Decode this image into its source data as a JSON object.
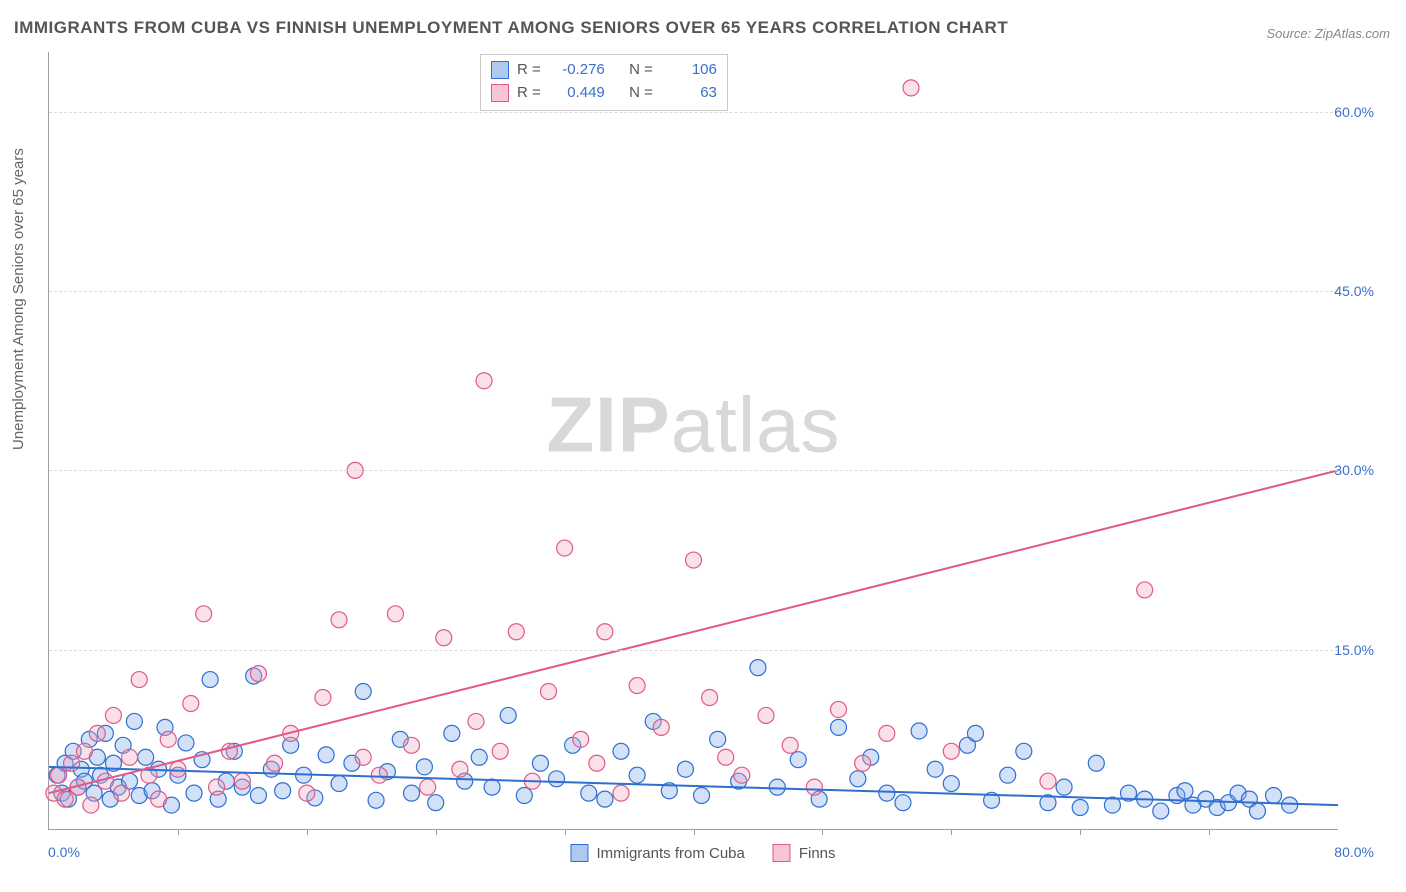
{
  "title": "IMMIGRANTS FROM CUBA VS FINNISH UNEMPLOYMENT AMONG SENIORS OVER 65 YEARS CORRELATION CHART",
  "source_prefix": "Source: ",
  "source_name": "ZipAtlas.com",
  "y_axis_label": "Unemployment Among Seniors over 65 years",
  "watermark_bold": "ZIP",
  "watermark_light": "atlas",
  "chart": {
    "type": "scatter",
    "xlim": [
      0,
      80
    ],
    "ylim": [
      0,
      65
    ],
    "x_origin_label": "0.0%",
    "x_max_label": "80.0%",
    "y_ticks": [
      15.0,
      30.0,
      45.0,
      60.0
    ],
    "y_tick_labels": [
      "15.0%",
      "30.0%",
      "45.0%",
      "60.0%"
    ],
    "x_minor_tick_step": 8,
    "background_color": "#ffffff",
    "grid_color": "#dcdcdc",
    "axis_color": "#9aa0a6",
    "tick_label_color": "#3b6fc9",
    "marker_radius": 8,
    "marker_fill_opacity": 0.35,
    "marker_stroke_width": 1.2,
    "trend_line_width": 2,
    "series": [
      {
        "id": "cuba",
        "label": "Immigrants from Cuba",
        "fill": "#7da9e8",
        "stroke": "#2f6fd0",
        "swatch_fill": "#aec8f0",
        "swatch_stroke": "#2f6fd0",
        "R": "-0.276",
        "N": "106",
        "trend": {
          "x1": 0,
          "y1": 5.2,
          "x2": 80,
          "y2": 2.0
        },
        "points": [
          [
            0.5,
            4.5
          ],
          [
            0.8,
            3.0
          ],
          [
            1.0,
            5.5
          ],
          [
            1.2,
            2.5
          ],
          [
            1.5,
            6.5
          ],
          [
            1.8,
            3.5
          ],
          [
            2.0,
            5.0
          ],
          [
            2.2,
            4.0
          ],
          [
            2.5,
            7.5
          ],
          [
            2.8,
            3.0
          ],
          [
            3.0,
            6.0
          ],
          [
            3.2,
            4.5
          ],
          [
            3.5,
            8.0
          ],
          [
            3.8,
            2.5
          ],
          [
            4.0,
            5.5
          ],
          [
            4.3,
            3.5
          ],
          [
            4.6,
            7.0
          ],
          [
            5.0,
            4.0
          ],
          [
            5.3,
            9.0
          ],
          [
            5.6,
            2.8
          ],
          [
            6.0,
            6.0
          ],
          [
            6.4,
            3.2
          ],
          [
            6.8,
            5.0
          ],
          [
            7.2,
            8.5
          ],
          [
            7.6,
            2.0
          ],
          [
            8.0,
            4.5
          ],
          [
            8.5,
            7.2
          ],
          [
            9.0,
            3.0
          ],
          [
            9.5,
            5.8
          ],
          [
            10.0,
            12.5
          ],
          [
            10.5,
            2.5
          ],
          [
            11.0,
            4.0
          ],
          [
            11.5,
            6.5
          ],
          [
            12.0,
            3.5
          ],
          [
            12.7,
            12.8
          ],
          [
            13.0,
            2.8
          ],
          [
            13.8,
            5.0
          ],
          [
            14.5,
            3.2
          ],
          [
            15.0,
            7.0
          ],
          [
            15.8,
            4.5
          ],
          [
            16.5,
            2.6
          ],
          [
            17.2,
            6.2
          ],
          [
            18.0,
            3.8
          ],
          [
            18.8,
            5.5
          ],
          [
            19.5,
            11.5
          ],
          [
            20.3,
            2.4
          ],
          [
            21.0,
            4.8
          ],
          [
            21.8,
            7.5
          ],
          [
            22.5,
            3.0
          ],
          [
            23.3,
            5.2
          ],
          [
            24.0,
            2.2
          ],
          [
            25.0,
            8.0
          ],
          [
            25.8,
            4.0
          ],
          [
            26.7,
            6.0
          ],
          [
            27.5,
            3.5
          ],
          [
            28.5,
            9.5
          ],
          [
            29.5,
            2.8
          ],
          [
            30.5,
            5.5
          ],
          [
            31.5,
            4.2
          ],
          [
            32.5,
            7.0
          ],
          [
            33.5,
            3.0
          ],
          [
            34.5,
            2.5
          ],
          [
            35.5,
            6.5
          ],
          [
            36.5,
            4.5
          ],
          [
            37.5,
            9.0
          ],
          [
            38.5,
            3.2
          ],
          [
            39.5,
            5.0
          ],
          [
            40.5,
            2.8
          ],
          [
            41.5,
            7.5
          ],
          [
            42.8,
            4.0
          ],
          [
            44.0,
            13.5
          ],
          [
            45.2,
            3.5
          ],
          [
            46.5,
            5.8
          ],
          [
            47.8,
            2.5
          ],
          [
            49.0,
            8.5
          ],
          [
            50.2,
            4.2
          ],
          [
            51.0,
            6.0
          ],
          [
            52.0,
            3.0
          ],
          [
            53.0,
            2.2
          ],
          [
            54.0,
            8.2
          ],
          [
            55.0,
            5.0
          ],
          [
            56.0,
            3.8
          ],
          [
            57.0,
            7.0
          ],
          [
            57.5,
            8.0
          ],
          [
            58.5,
            2.4
          ],
          [
            59.5,
            4.5
          ],
          [
            60.5,
            6.5
          ],
          [
            62.0,
            2.2
          ],
          [
            63.0,
            3.5
          ],
          [
            64.0,
            1.8
          ],
          [
            65.0,
            5.5
          ],
          [
            66.0,
            2.0
          ],
          [
            67.0,
            3.0
          ],
          [
            68.0,
            2.5
          ],
          [
            69.0,
            1.5
          ],
          [
            70.0,
            2.8
          ],
          [
            70.5,
            3.2
          ],
          [
            71.0,
            2.0
          ],
          [
            71.8,
            2.5
          ],
          [
            72.5,
            1.8
          ],
          [
            73.2,
            2.2
          ],
          [
            73.8,
            3.0
          ],
          [
            74.5,
            2.5
          ],
          [
            75.0,
            1.5
          ],
          [
            76.0,
            2.8
          ],
          [
            77.0,
            2.0
          ]
        ]
      },
      {
        "id": "finns",
        "label": "Finns",
        "fill": "#f2a7bd",
        "stroke": "#e05a87",
        "swatch_fill": "#f7c5d4",
        "swatch_stroke": "#e05a87",
        "R": "0.449",
        "N": "63",
        "trend": {
          "x1": 0,
          "y1": 3.0,
          "x2": 80,
          "y2": 30.0
        },
        "points": [
          [
            0.3,
            3.0
          ],
          [
            0.6,
            4.5
          ],
          [
            1.0,
            2.5
          ],
          [
            1.4,
            5.5
          ],
          [
            1.8,
            3.5
          ],
          [
            2.2,
            6.5
          ],
          [
            2.6,
            2.0
          ],
          [
            3.0,
            8.0
          ],
          [
            3.5,
            4.0
          ],
          [
            4.0,
            9.5
          ],
          [
            4.5,
            3.0
          ],
          [
            5.0,
            6.0
          ],
          [
            5.6,
            12.5
          ],
          [
            6.2,
            4.5
          ],
          [
            6.8,
            2.5
          ],
          [
            7.4,
            7.5
          ],
          [
            8.0,
            5.0
          ],
          [
            8.8,
            10.5
          ],
          [
            9.6,
            18.0
          ],
          [
            10.4,
            3.5
          ],
          [
            11.2,
            6.5
          ],
          [
            12.0,
            4.0
          ],
          [
            13.0,
            13.0
          ],
          [
            14.0,
            5.5
          ],
          [
            15.0,
            8.0
          ],
          [
            16.0,
            3.0
          ],
          [
            17.0,
            11.0
          ],
          [
            18.0,
            17.5
          ],
          [
            19.0,
            30.0
          ],
          [
            19.5,
            6.0
          ],
          [
            20.5,
            4.5
          ],
          [
            21.5,
            18.0
          ],
          [
            22.5,
            7.0
          ],
          [
            23.5,
            3.5
          ],
          [
            24.5,
            16.0
          ],
          [
            25.5,
            5.0
          ],
          [
            26.5,
            9.0
          ],
          [
            27.0,
            37.5
          ],
          [
            28.0,
            6.5
          ],
          [
            29.0,
            16.5
          ],
          [
            30.0,
            4.0
          ],
          [
            31.0,
            11.5
          ],
          [
            32.0,
            23.5
          ],
          [
            33.0,
            7.5
          ],
          [
            34.0,
            5.5
          ],
          [
            34.5,
            16.5
          ],
          [
            35.5,
            3.0
          ],
          [
            36.5,
            12.0
          ],
          [
            38.0,
            8.5
          ],
          [
            40.0,
            22.5
          ],
          [
            41.0,
            11.0
          ],
          [
            42.0,
            6.0
          ],
          [
            43.0,
            4.5
          ],
          [
            44.5,
            9.5
          ],
          [
            46.0,
            7.0
          ],
          [
            47.5,
            3.5
          ],
          [
            49.0,
            10.0
          ],
          [
            50.5,
            5.5
          ],
          [
            52.0,
            8.0
          ],
          [
            53.5,
            62.0
          ],
          [
            56.0,
            6.5
          ],
          [
            62.0,
            4.0
          ],
          [
            68.0,
            20.0
          ]
        ]
      }
    ]
  },
  "stats_legend": {
    "r_label": "R =",
    "n_label": "N ="
  }
}
